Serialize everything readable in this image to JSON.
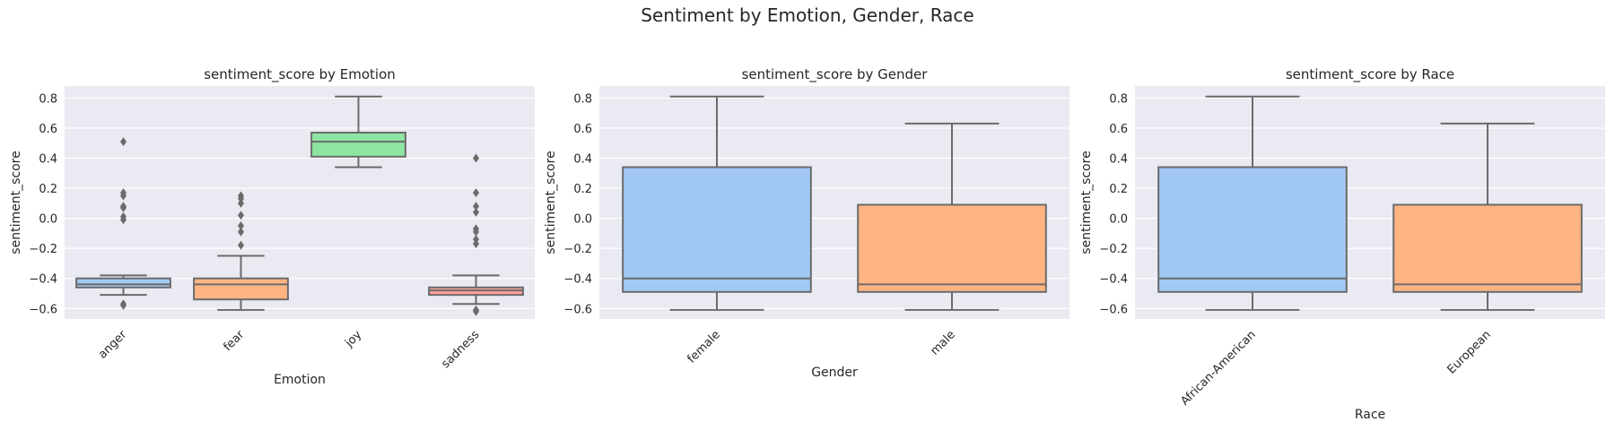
{
  "figure": {
    "title": "Sentiment by Emotion, Gender, Race",
    "background": "#eaeaf2",
    "grid_color": "#ffffff",
    "box_edge_color": "#6b6b6b"
  },
  "chart_data": [
    {
      "type": "box",
      "title": "sentiment_score by Emotion",
      "xlabel": "Emotion",
      "ylabel": "sentiment_score",
      "ylim": [
        -0.67,
        0.88
      ],
      "yticks": [
        0.8,
        0.6,
        0.4,
        0.2,
        0.0,
        -0.2,
        -0.4,
        -0.6
      ],
      "ytick_labels": [
        "0.8",
        "0.6",
        "0.4",
        "0.2",
        "0.0",
        "−0.2",
        "−0.4",
        "−0.6"
      ],
      "grid": true,
      "categories": [
        "anger",
        "fear",
        "joy",
        "sadness"
      ],
      "boxes": [
        {
          "category": "anger",
          "whisker_low": -0.51,
          "q1": -0.46,
          "median": -0.44,
          "q3": -0.4,
          "whisker_high": -0.38,
          "outliers": [
            0.51,
            0.17,
            0.15,
            0.08,
            0.07,
            0.01,
            -0.01,
            -0.57,
            -0.58
          ],
          "color": "#a1c9f4"
        },
        {
          "category": "fear",
          "whisker_low": -0.61,
          "q1": -0.54,
          "median": -0.44,
          "q3": -0.4,
          "whisker_high": -0.25,
          "outliers": [
            0.15,
            0.13,
            0.1,
            0.02,
            -0.05,
            -0.09,
            -0.18
          ],
          "color": "#ffb482"
        },
        {
          "category": "joy",
          "whisker_low": 0.34,
          "q1": 0.41,
          "median": 0.51,
          "q3": 0.57,
          "whisker_high": 0.81,
          "outliers": [],
          "color": "#8de5a1"
        },
        {
          "category": "sadness",
          "whisker_low": -0.57,
          "q1": -0.51,
          "median": -0.48,
          "q3": -0.46,
          "whisker_high": -0.38,
          "outliers": [
            0.4,
            0.17,
            0.08,
            0.04,
            -0.07,
            -0.09,
            -0.14,
            -0.17,
            -0.61,
            -0.62
          ],
          "color": "#ff9f9b"
        }
      ]
    },
    {
      "type": "box",
      "title": "sentiment_score by Gender",
      "xlabel": "Gender",
      "ylabel": "sentiment_score",
      "ylim": [
        -0.67,
        0.88
      ],
      "yticks": [
        0.8,
        0.6,
        0.4,
        0.2,
        0.0,
        -0.2,
        -0.4,
        -0.6
      ],
      "ytick_labels": [
        "0.8",
        "0.6",
        "0.4",
        "0.2",
        "0.0",
        "−0.2",
        "−0.4",
        "−0.6"
      ],
      "grid": true,
      "categories": [
        "female",
        "male"
      ],
      "boxes": [
        {
          "category": "female",
          "whisker_low": -0.61,
          "q1": -0.49,
          "median": -0.4,
          "q3": 0.34,
          "whisker_high": 0.81,
          "outliers": [],
          "color": "#a1c9f4"
        },
        {
          "category": "male",
          "whisker_low": -0.61,
          "q1": -0.49,
          "median": -0.44,
          "q3": 0.09,
          "whisker_high": 0.63,
          "outliers": [],
          "color": "#ffb482"
        }
      ]
    },
    {
      "type": "box",
      "title": "sentiment_score by Race",
      "xlabel": "Race",
      "ylabel": "sentiment_score",
      "ylim": [
        -0.67,
        0.88
      ],
      "yticks": [
        0.8,
        0.6,
        0.4,
        0.2,
        0.0,
        -0.2,
        -0.4,
        -0.6
      ],
      "ytick_labels": [
        "0.8",
        "0.6",
        "0.4",
        "0.2",
        "0.0",
        "−0.2",
        "−0.4",
        "−0.6"
      ],
      "grid": true,
      "categories": [
        "African-American",
        "European"
      ],
      "boxes": [
        {
          "category": "African-American",
          "whisker_low": -0.61,
          "q1": -0.49,
          "median": -0.4,
          "q3": 0.34,
          "whisker_high": 0.81,
          "outliers": [],
          "color": "#a1c9f4"
        },
        {
          "category": "European",
          "whisker_low": -0.61,
          "q1": -0.49,
          "median": -0.44,
          "q3": 0.09,
          "whisker_high": 0.63,
          "outliers": [],
          "color": "#ffb482"
        }
      ]
    }
  ]
}
